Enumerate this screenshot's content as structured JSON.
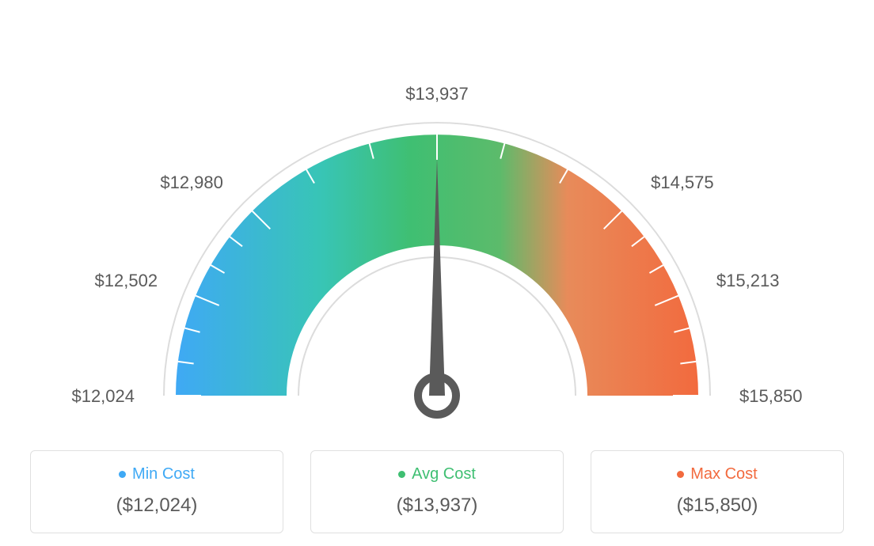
{
  "gauge": {
    "type": "gauge",
    "min_value": 12024,
    "max_value": 15850,
    "avg_value": 13937,
    "needle_value": 13937,
    "tick_labels": [
      "$12,024",
      "$12,502",
      "$12,980",
      "$13,937",
      "$14,575",
      "$15,213",
      "$15,850"
    ],
    "tick_angles_deg": [
      180,
      157.5,
      135,
      90,
      45,
      22.5,
      0
    ],
    "minor_tick_count_between_major": 2,
    "gradient_colors": {
      "start": "#3fa9f5",
      "mid1": "#38c5b5",
      "mid2": "#3fbf72",
      "mid3": "#5cbb6b",
      "end_transition": "#e88b5a",
      "end": "#f26a3e"
    },
    "arc_outer_radius": 330,
    "arc_inner_radius": 190,
    "outline_gap": 14,
    "outline_color": "#dcdcdc",
    "outline_width": 2,
    "tick_color": "#ffffff",
    "tick_width": 2,
    "major_tick_length": 32,
    "minor_tick_length": 20,
    "needle_color": "#5a5a5a",
    "needle_ring_outer": 24,
    "needle_ring_inner": 14,
    "background_color": "#ffffff",
    "label_font_size": 22,
    "label_color": "#5a5a5a"
  },
  "legend": {
    "cards": [
      {
        "label": "Min Cost",
        "value": "($12,024)",
        "dot_color": "#3fa9f5",
        "label_color": "#3fa9f5"
      },
      {
        "label": "Avg Cost",
        "value": "($13,937)",
        "dot_color": "#3fbf72",
        "label_color": "#3fbf72"
      },
      {
        "label": "Max Cost",
        "value": "($15,850)",
        "dot_color": "#f26a3e",
        "label_color": "#f26a3e"
      }
    ],
    "card_border_color": "#e0e0e0",
    "card_border_radius": 6,
    "value_color": "#5a5a5a",
    "label_font_size": 20,
    "value_font_size": 24
  }
}
